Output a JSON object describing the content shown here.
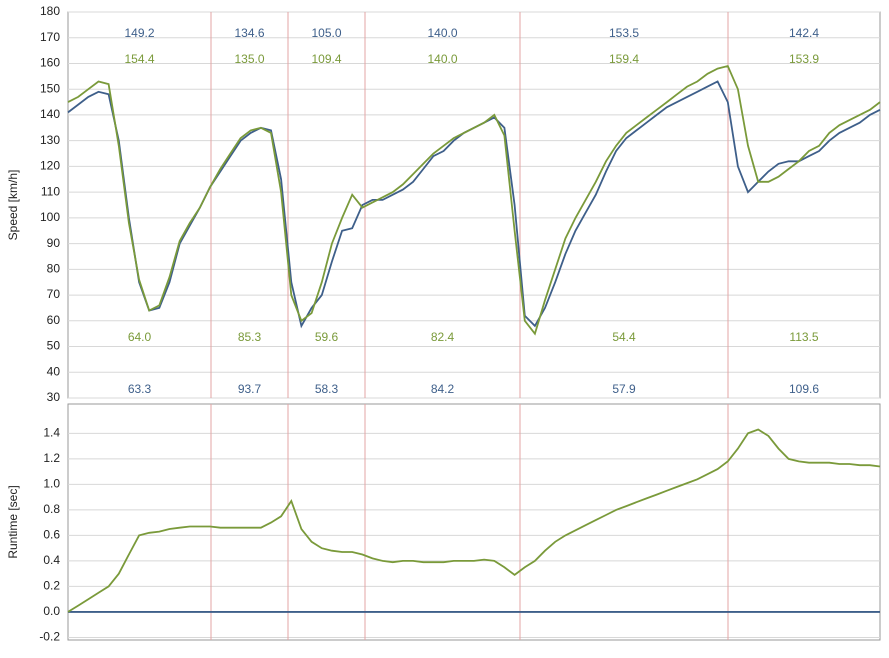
{
  "chart_data": [
    {
      "type": "line",
      "ylabel": "Speed [km/h]",
      "ylim": [
        30,
        180
      ],
      "yticks": [
        30,
        40,
        50,
        60,
        70,
        80,
        90,
        100,
        110,
        120,
        130,
        140,
        150,
        160,
        170,
        180
      ],
      "grid": true,
      "series": [
        {
          "color": "#3e5f8a",
          "values": [
            141,
            144,
            147,
            149,
            148,
            130,
            100,
            75,
            64,
            65,
            75,
            90,
            97,
            104,
            112,
            118,
            124,
            130,
            133,
            135,
            134,
            115,
            75,
            58,
            65,
            70,
            83,
            95,
            96,
            105,
            107,
            107,
            109,
            111,
            114,
            119,
            124,
            126,
            130,
            133,
            135,
            137,
            139,
            135,
            105,
            62,
            58,
            65,
            75,
            86,
            95,
            102,
            109,
            118,
            126,
            131,
            134,
            137,
            140,
            143,
            145,
            147,
            149,
            151,
            153,
            145,
            120,
            110,
            114,
            118,
            121,
            122,
            122,
            124,
            126,
            130,
            133,
            135,
            137,
            140,
            142
          ],
          "section_max": [
            "149.2",
            "134.6",
            "105.0",
            "140.0",
            "153.5",
            "142.4"
          ],
          "section_min": [
            "63.3",
            "93.7",
            "58.3",
            "84.2",
            "57.9",
            "109.6"
          ]
        },
        {
          "color": "#7a9a3a",
          "values": [
            145,
            147,
            150,
            153,
            152,
            128,
            98,
            76,
            64,
            66,
            77,
            91,
            98,
            104,
            112,
            119,
            125,
            131,
            134,
            135,
            133,
            110,
            70,
            60,
            63,
            75,
            90,
            100,
            109,
            104,
            106,
            108,
            110,
            113,
            117,
            121,
            125,
            128,
            131,
            133,
            135,
            137,
            140,
            132,
            95,
            60,
            55,
            68,
            80,
            92,
            100,
            107,
            114,
            122,
            128,
            133,
            136,
            139,
            142,
            145,
            148,
            151,
            153,
            156,
            158,
            159,
            150,
            128,
            114,
            114,
            116,
            119,
            122,
            126,
            128,
            133,
            136,
            138,
            140,
            142,
            145
          ],
          "section_max": [
            "154.4",
            "135.0",
            "109.4",
            "140.0",
            "159.4",
            "153.9"
          ],
          "section_min": [
            "64.0",
            "85.3",
            "59.6",
            "82.4",
            "54.4",
            "113.5"
          ]
        }
      ]
    },
    {
      "type": "line",
      "ylabel": "Runtime [sec]",
      "ylim": [
        -0.22,
        1.63
      ],
      "yticks": [
        {
          "value": -0.2,
          "label": "-0.2"
        },
        {
          "value": 0,
          "label": "0.0"
        },
        0.2,
        0.4,
        0.6,
        0.8,
        {
          "value": 1,
          "label": "1.0"
        },
        1.2,
        1.4
      ],
      "grid": true,
      "reference_line": {
        "value": 0,
        "color": "#3e5f8a"
      },
      "series": [
        {
          "color": "#7a9a3a",
          "values": [
            0,
            0.05,
            0.1,
            0.15,
            0.2,
            0.3,
            0.45,
            0.6,
            0.62,
            0.63,
            0.65,
            0.66,
            0.67,
            0.67,
            0.67,
            0.66,
            0.66,
            0.66,
            0.66,
            0.66,
            0.7,
            0.75,
            0.87,
            0.65,
            0.55,
            0.5,
            0.48,
            0.47,
            0.47,
            0.45,
            0.42,
            0.4,
            0.39,
            0.4,
            0.4,
            0.39,
            0.39,
            0.39,
            0.4,
            0.4,
            0.4,
            0.41,
            0.4,
            0.35,
            0.29,
            0.35,
            0.4,
            0.48,
            0.55,
            0.6,
            0.64,
            0.68,
            0.72,
            0.76,
            0.8,
            0.83,
            0.86,
            0.89,
            0.92,
            0.95,
            0.98,
            1.01,
            1.04,
            1.08,
            1.12,
            1.18,
            1.28,
            1.4,
            1.43,
            1.38,
            1.28,
            1.2,
            1.18,
            1.17,
            1.17,
            1.17,
            1.16,
            1.16,
            1.15,
            1.15,
            1.14
          ]
        }
      ]
    }
  ]
}
